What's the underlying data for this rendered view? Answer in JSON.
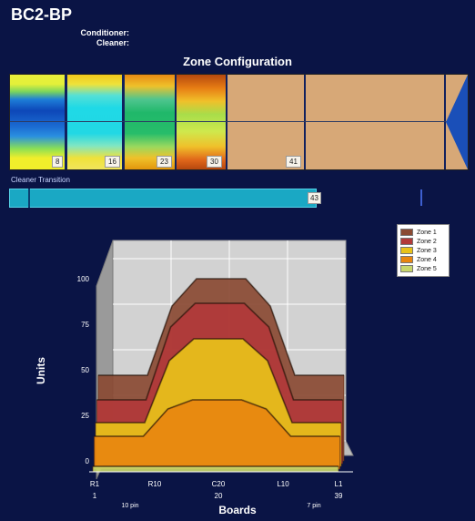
{
  "title": "BC2-BP",
  "conditioner_label": "Conditioner:",
  "cleaner_label": "Cleaner:",
  "zone_config": {
    "title": "Zone Configuration",
    "markers": [
      "8",
      "16",
      "23",
      "30",
      "41"
    ]
  },
  "cleaner_transition": {
    "label": "Cleaner Transition",
    "value": "43",
    "progress": 0.67
  },
  "legend": [
    {
      "name": "Zone 1",
      "color": "#8a4a33"
    },
    {
      "name": "Zone 2",
      "color": "#b23a3a"
    },
    {
      "name": "Zone 3",
      "color": "#e8c21a"
    },
    {
      "name": "Zone 4",
      "color": "#e8850f"
    },
    {
      "name": "Zone 5",
      "color": "#c8d66a"
    }
  ],
  "chart_data": {
    "type": "area",
    "xlabel": "Boards",
    "ylabel": "Units",
    "ylim": [
      0,
      100
    ],
    "yticks": [
      "0",
      "25",
      "50",
      "75",
      "100"
    ],
    "xticks": [
      "R1",
      "R10",
      "C20",
      "L10",
      "L1"
    ],
    "xticks_num": [
      "1",
      "20",
      "39"
    ],
    "x_annotations": [
      "10 pin",
      "7 pin"
    ],
    "x": [
      0,
      1,
      2,
      3,
      4,
      5,
      6,
      7,
      8,
      9,
      10
    ],
    "series": [
      {
        "name": "Zone 1",
        "values": [
          47,
          47,
          47,
          85,
          100,
          100,
          100,
          85,
          47,
          47,
          47
        ]
      },
      {
        "name": "Zone 2",
        "values": [
          35,
          35,
          35,
          75,
          88,
          88,
          88,
          75,
          35,
          35,
          35
        ]
      },
      {
        "name": "Zone 3",
        "values": [
          24,
          24,
          24,
          58,
          70,
          70,
          70,
          58,
          24,
          24,
          24
        ]
      },
      {
        "name": "Zone 4",
        "values": [
          18,
          18,
          18,
          33,
          38,
          38,
          38,
          33,
          18,
          18,
          18
        ]
      },
      {
        "name": "Zone 5",
        "values": [
          3,
          3,
          3,
          3,
          3,
          3,
          3,
          3,
          3,
          3,
          3
        ]
      }
    ]
  }
}
